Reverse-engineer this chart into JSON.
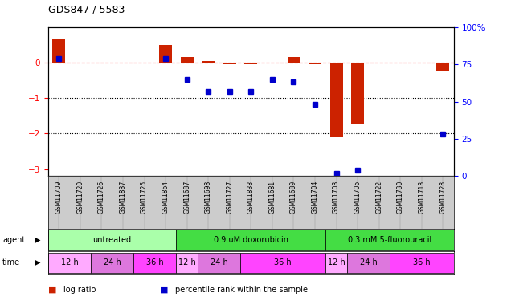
{
  "title": "GDS847 / 5583",
  "samples": [
    "GSM11709",
    "GSM11720",
    "GSM11726",
    "GSM11837",
    "GSM11725",
    "GSM11864",
    "GSM11687",
    "GSM11693",
    "GSM11727",
    "GSM11838",
    "GSM11681",
    "GSM11689",
    "GSM11704",
    "GSM11703",
    "GSM11705",
    "GSM11722",
    "GSM11730",
    "GSM11713",
    "GSM11728"
  ],
  "log_ratio": [
    0.65,
    0.0,
    0.0,
    0.0,
    0.0,
    0.5,
    0.15,
    0.05,
    -0.05,
    -0.05,
    0.0,
    0.15,
    -0.05,
    -2.1,
    -1.75,
    0.0,
    0.0,
    0.0,
    -0.22
  ],
  "percentile": [
    79,
    null,
    null,
    null,
    null,
    79,
    65,
    57,
    57,
    57,
    65,
    63,
    48,
    2,
    4,
    null,
    null,
    null,
    28
  ],
  "agents": [
    {
      "label": "untreated",
      "start": 0,
      "end": 6,
      "color": "#aaffaa"
    },
    {
      "label": "0.9 uM doxorubicin",
      "start": 6,
      "end": 13,
      "color": "#44dd44"
    },
    {
      "label": "0.3 mM 5-fluorouracil",
      "start": 13,
      "end": 19,
      "color": "#44dd44"
    }
  ],
  "times": [
    {
      "label": "12 h",
      "start": 0,
      "end": 2,
      "color": "#ffaaff"
    },
    {
      "label": "24 h",
      "start": 2,
      "end": 4,
      "color": "#dd77dd"
    },
    {
      "label": "36 h",
      "start": 4,
      "end": 6,
      "color": "#ff44ff"
    },
    {
      "label": "12 h",
      "start": 6,
      "end": 7,
      "color": "#ffaaff"
    },
    {
      "label": "24 h",
      "start": 7,
      "end": 9,
      "color": "#dd77dd"
    },
    {
      "label": "36 h",
      "start": 9,
      "end": 13,
      "color": "#ff44ff"
    },
    {
      "label": "12 h",
      "start": 13,
      "end": 14,
      "color": "#ffaaff"
    },
    {
      "label": "24 h",
      "start": 14,
      "end": 16,
      "color": "#dd77dd"
    },
    {
      "label": "36 h",
      "start": 16,
      "end": 19,
      "color": "#ff44ff"
    }
  ],
  "bar_color": "#cc2200",
  "percentile_color": "#0000cc",
  "ylim_left": [
    -3.2,
    1.0
  ],
  "ylim_right": [
    0,
    100
  ],
  "yticks_left": [
    -3,
    -2,
    -1,
    0
  ],
  "yticks_right": [
    0,
    25,
    50,
    75,
    100
  ],
  "legend_items": [
    {
      "label": "log ratio",
      "color": "#cc2200"
    },
    {
      "label": "percentile rank within the sample",
      "color": "#0000cc"
    }
  ],
  "xlabel_bg": "#cccccc",
  "fig_width": 6.31,
  "fig_height": 3.75
}
